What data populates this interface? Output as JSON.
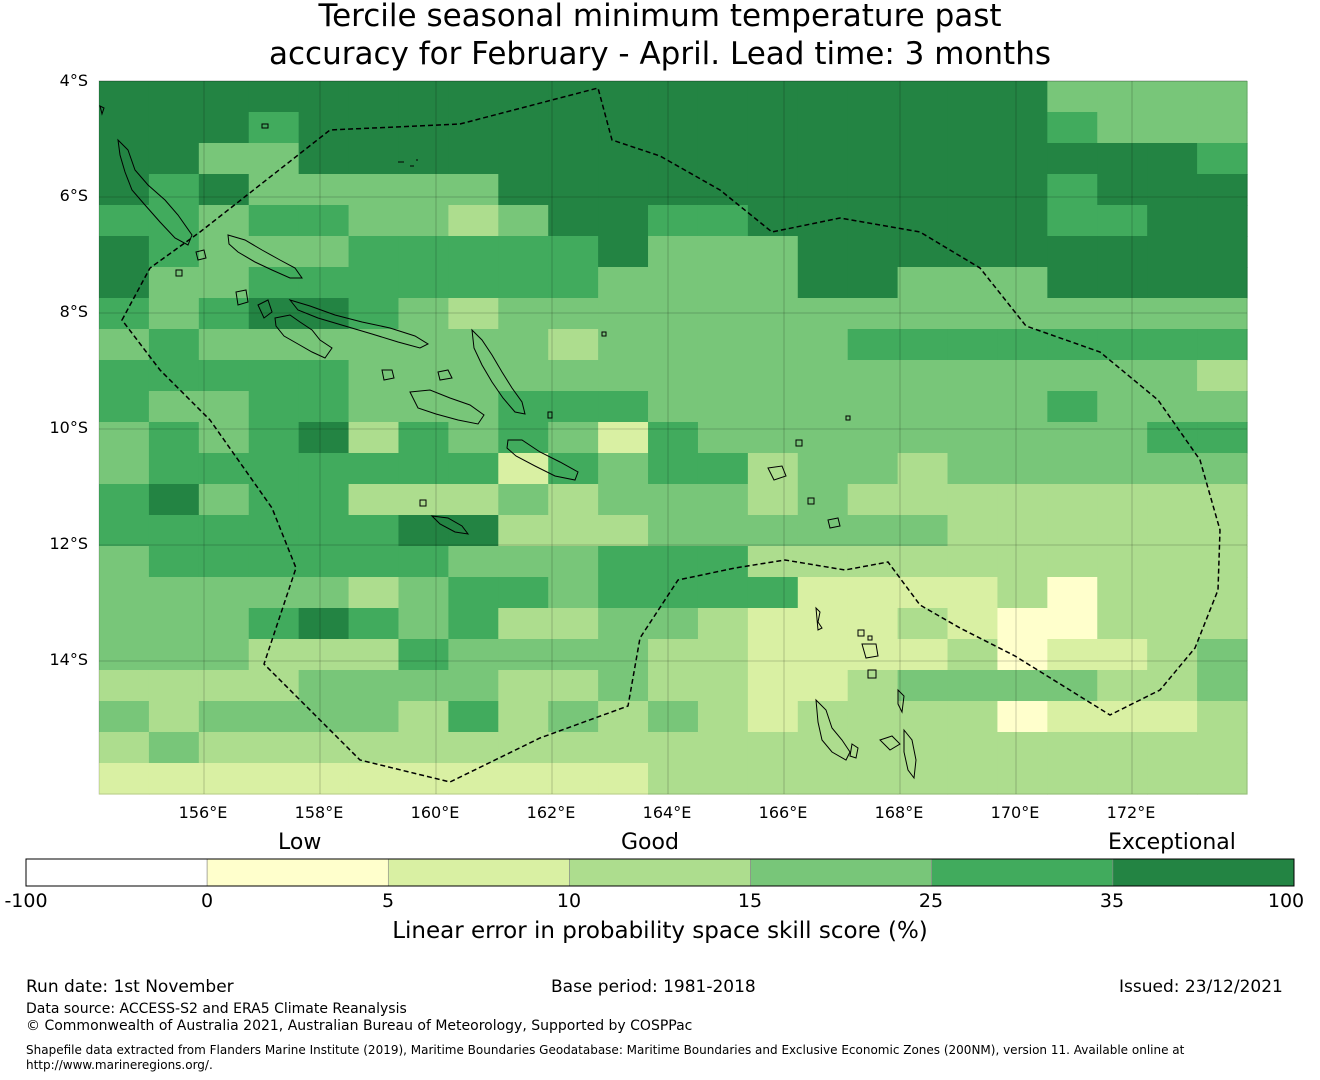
{
  "title": {
    "line1": "Tercile seasonal minimum temperature past",
    "line2": "accuracy for February - April. Lead time: 3 months"
  },
  "chart_data": {
    "type": "heatmap",
    "lat_ticks": [
      "4°S",
      "6°S",
      "8°S",
      "10°S",
      "12°S",
      "14°S"
    ],
    "lon_ticks": [
      "156°E",
      "158°E",
      "160°E",
      "162°E",
      "164°E",
      "166°E",
      "168°E",
      "170°E",
      "172°E"
    ],
    "colorbar": {
      "title": "Linear error in probability space skill score (%)",
      "tick_labels": [
        "-100",
        "0",
        "5",
        "10",
        "15",
        "25",
        "35",
        "100"
      ],
      "category_labels": [
        "Low",
        "Good",
        "Exceptional"
      ],
      "bin_colors": [
        "#ffffff",
        "#ffffcc",
        "#d9f0a3",
        "#addd8e",
        "#78c679",
        "#41ab5d",
        "#238443"
      ]
    },
    "grid_rows": [
      "66666666666666666664444",
      "66656666666666666665444",
      "66446666666666666666665",
      "65644444666666666665666",
      "55455443466556666665566",
      "65444555556444666666666",
      "64455555554444664446666",
      "54566543444444444444444",
      "45444444434444455555555",
      "55555444444444444444443",
      "54455444555444444445444",
      "45456354542544444444455",
      "45555555254553443444444",
      "56455333434443433333333",
      "55555566333444444333333",
      "45555554445553333333333",
      "44444345545555222231333",
      "44456545334432223211333",
      "44433354444332222312234",
      "33334444334332234444334",
      "43444435343432333312223",
      "34333333333333333333333",
      "22222222222333333333333"
    ]
  },
  "footer": {
    "run_date": "Run date: 1st November",
    "base_period": "Base period: 1981-2018",
    "issued": "Issued: 23/12/2021",
    "data_source": "Data source: ACCESS-S2 and ERA5 Climate Reanalysis",
    "copyright": "© Commonwealth of Australia 2021, Australian Bureau of Meteorology, Supported by COSPPac",
    "shapefile_line1": "Shapefile data extracted from Flanders Marine Institute (2019), Maritime Boundaries Geodatabase: Maritime Boundaries and Exclusive Economic Zones (200NM), version 11. Available online at",
    "shapefile_line2": "http://www.marineregions.org/."
  }
}
